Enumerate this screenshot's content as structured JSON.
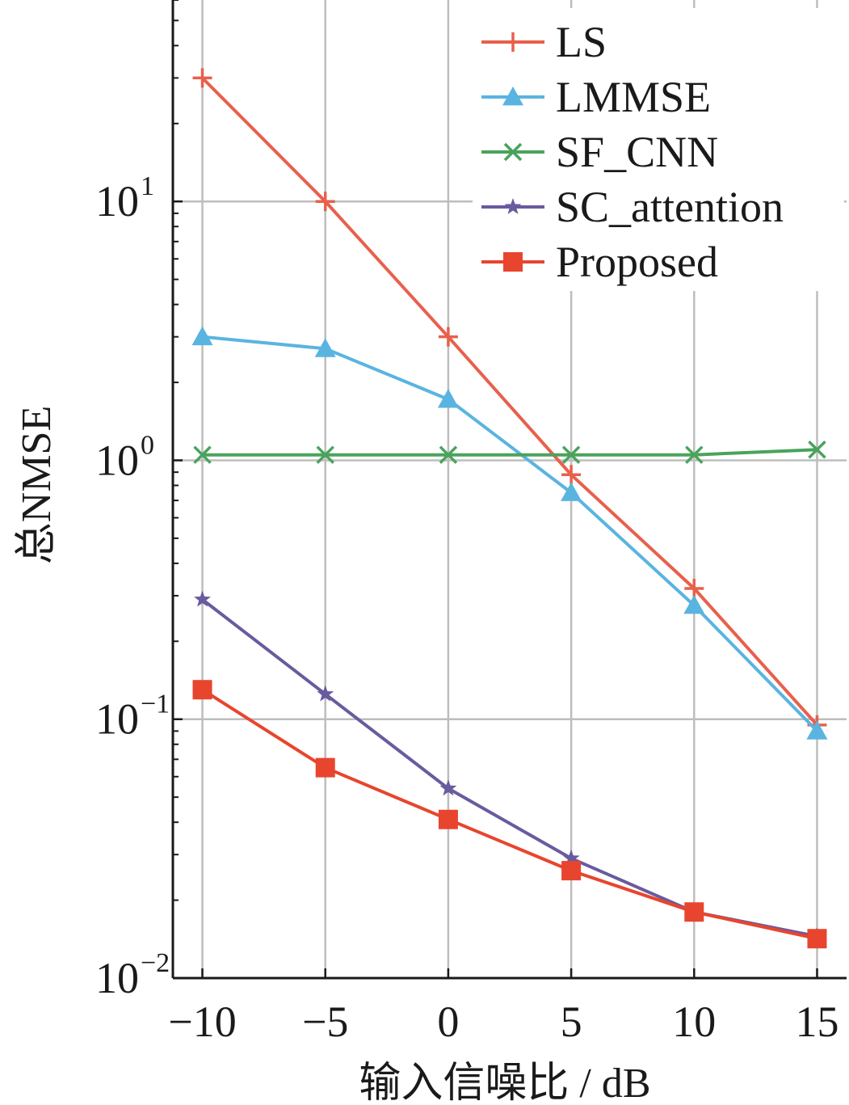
{
  "chart_data": {
    "type": "line",
    "title": "",
    "xlabel": "输入信噪比 / dB",
    "ylabel": "总NMSE",
    "yscale": "log",
    "xlim": [
      -11.2,
      16.2
    ],
    "ylim": [
      0.01,
      60
    ],
    "x": [
      -10,
      -5,
      0,
      5,
      10,
      15
    ],
    "xticks": [
      -10,
      -5,
      0,
      5,
      10,
      15
    ],
    "xtick_labels": [
      "−10",
      "−5",
      "0",
      "5",
      "10",
      "15"
    ],
    "yticks": [
      0.01,
      0.1,
      1,
      10
    ],
    "ytick_labels": [
      {
        "base": "10",
        "exp": "−2"
      },
      {
        "base": "10",
        "exp": "−1"
      },
      {
        "base": "10",
        "exp": "0"
      },
      {
        "base": "10",
        "exp": "1"
      }
    ],
    "grid": true,
    "legend_position": "top-right",
    "series": [
      {
        "name": "LS",
        "color": "#e8604c",
        "marker": "plus",
        "values": [
          30,
          10,
          3.0,
          0.88,
          0.32,
          0.095
        ]
      },
      {
        "name": "LMMSE",
        "color": "#5ab4e0",
        "marker": "triangle",
        "values": [
          3.0,
          2.7,
          1.72,
          0.75,
          0.275,
          0.09
        ]
      },
      {
        "name": "SF_CNN",
        "color": "#4aa35c",
        "marker": "x",
        "values": [
          1.05,
          1.05,
          1.05,
          1.05,
          1.05,
          1.1
        ]
      },
      {
        "name": "SC_attention",
        "color": "#6a5a9e",
        "marker": "star",
        "values": [
          0.29,
          0.125,
          0.054,
          0.029,
          0.018,
          0.0145
        ]
      },
      {
        "name": "Proposed",
        "color": "#e8452e",
        "marker": "square",
        "values": [
          0.13,
          0.065,
          0.041,
          0.026,
          0.018,
          0.0142
        ]
      }
    ]
  }
}
